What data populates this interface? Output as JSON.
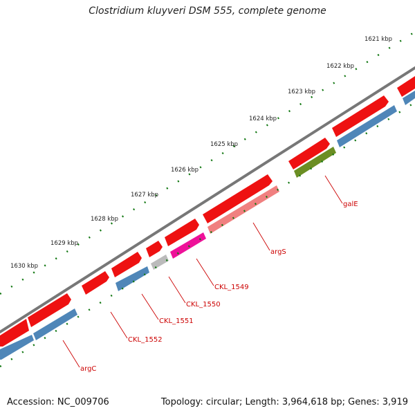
{
  "title": "Clostridium kluyveri DSM 555, complete genome",
  "footer": {
    "accession": "Accession: NC_009706",
    "stats": "Topology: circular; Length: 3,964,618 bp; Genes: 3,919"
  },
  "colors": {
    "backbone": "#777777",
    "tick": "#117711",
    "gene_forward": "#ee1111",
    "gene_reverse_blue": "#4f86b8",
    "gene_pink": "#f08080",
    "gene_magenta": "#ee1199",
    "gene_olive": "#6b8e23",
    "gene_gray": "#bbbbbb",
    "label": "#cc0000"
  },
  "scale_labels": [
    "1621 kbp",
    "1622 kbp",
    "1623 kbp",
    "1624 kbp",
    "1625 kbp",
    "1626 kbp",
    "1627 kbp",
    "1628 kbp",
    "1629 kbp",
    "1630 kbp"
  ],
  "gene_labels": [
    "galE",
    "argS",
    "CKL_1549",
    "CKL_1550",
    "CKL_1551",
    "CKL_1552",
    "argC"
  ]
}
